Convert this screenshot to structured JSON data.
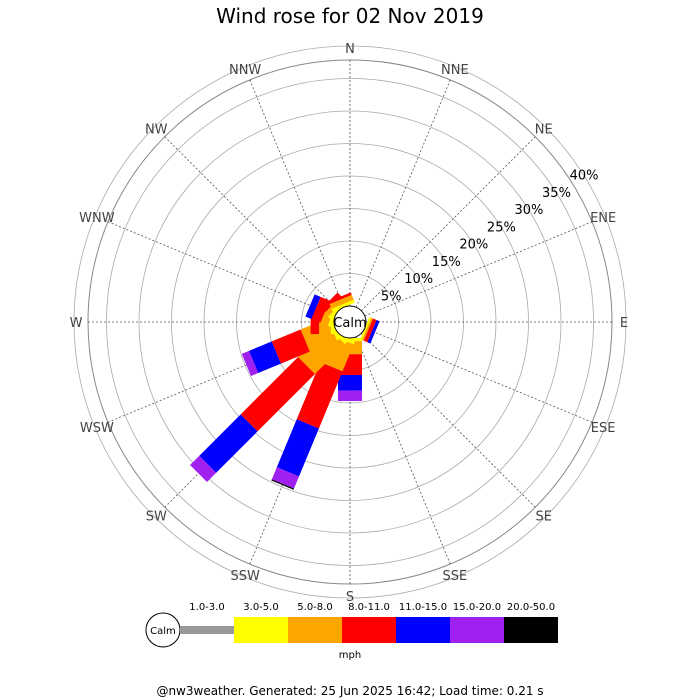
{
  "title": "Wind rose for 02 Nov 2019",
  "footer": "@nw3weather. Generated: 25 Jun 2025 16:42; Load time: 0.21 s",
  "chart_data": {
    "type": "polar-bar",
    "title": "Wind rose for 02 Nov 2019",
    "directions": [
      "N",
      "NNE",
      "NE",
      "ENE",
      "E",
      "ESE",
      "SE",
      "SSE",
      "S",
      "SSW",
      "SW",
      "WSW",
      "W",
      "WNW",
      "NW",
      "NNW"
    ],
    "ring_labels": [
      "5%",
      "10%",
      "15%",
      "20%",
      "25%",
      "30%",
      "35%",
      "40%"
    ],
    "ring_values": [
      5,
      10,
      15,
      20,
      25,
      30,
      35,
      40
    ],
    "calm_label": "Calm",
    "units": "mph",
    "bins": [
      {
        "label": "1.0-3.0",
        "color": "#999999"
      },
      {
        "label": "3.0-5.0",
        "color": "#ffff00"
      },
      {
        "label": "5.0-8.0",
        "color": "#ffa500"
      },
      {
        "label": "8.0-11.0",
        "color": "#ff0000"
      },
      {
        "label": "11.0-15.0",
        "color": "#0000ff"
      },
      {
        "label": "15.0-20.0",
        "color": "#a020f0"
      },
      {
        "label": "20.0-50.0",
        "color": "#000000"
      }
    ],
    "frequencies_percent": {
      "N": [
        0,
        0,
        0,
        0,
        0,
        0,
        0
      ],
      "NNE": [
        0,
        0,
        0,
        0,
        0,
        0,
        0
      ],
      "NE": [
        0,
        0,
        0,
        0,
        0,
        0,
        0
      ],
      "ENE": [
        0,
        0,
        0,
        0,
        0,
        0,
        0
      ],
      "E": [
        0,
        0,
        0,
        0,
        0,
        0,
        0
      ],
      "ESE": [
        0,
        0.3,
        0.3,
        0.6,
        0.5,
        0,
        0
      ],
      "SE": [
        0,
        0,
        0,
        0,
        0,
        0,
        0
      ],
      "SSE": [
        0,
        0,
        0,
        0,
        0,
        0,
        0
      ],
      "S": [
        0,
        0.5,
        2.0,
        3.2,
        2.4,
        1.6,
        0
      ],
      "SSW": [
        0,
        0.5,
        4.5,
        9.5,
        8.0,
        2.0,
        0.2
      ],
      "SW": [
        0,
        0.5,
        6.5,
        12.5,
        9.0,
        2.0,
        0
      ],
      "WSW": [
        0,
        0.5,
        4.5,
        4.8,
        3.8,
        1.2,
        0
      ],
      "W": [
        0,
        0.5,
        1.8,
        1.3,
        0,
        0,
        0
      ],
      "WNW": [
        0,
        0.5,
        1.2,
        1.5,
        1.0,
        0,
        0
      ],
      "NW": [
        0,
        0.5,
        0.8,
        0.8,
        0,
        0,
        0
      ],
      "NNW": [
        0,
        0.5,
        0.8,
        0.4,
        0,
        0,
        0
      ]
    }
  }
}
